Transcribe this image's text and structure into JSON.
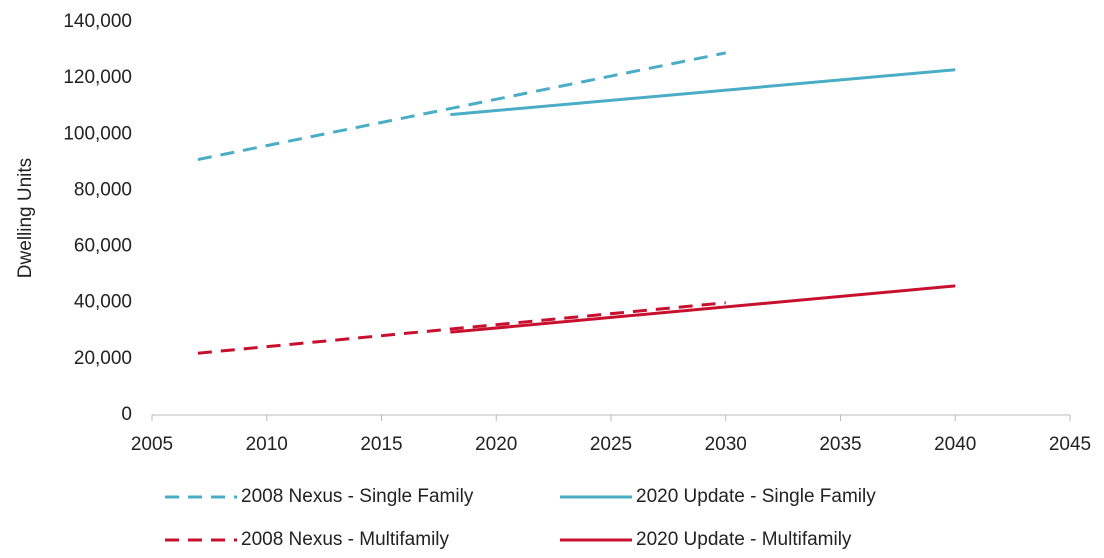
{
  "chart_data": {
    "type": "line",
    "y_label": "Dwelling Units",
    "xlim": [
      2005,
      2045
    ],
    "xticks": [
      2005,
      2010,
      2015,
      2020,
      2025,
      2030,
      2035,
      2040,
      2045
    ],
    "ylim": [
      0,
      140000
    ],
    "yticks": [
      0,
      {
        "value": 20000,
        "label": "20,000"
      },
      {
        "value": 40000,
        "label": "40,000"
      },
      {
        "value": 60000,
        "label": "60,000"
      },
      {
        "value": 80000,
        "label": "80,000"
      },
      {
        "value": 100000,
        "label": "100,000"
      },
      {
        "value": 120000,
        "label": "120,000"
      },
      {
        "value": 140000,
        "label": "140,000"
      }
    ],
    "legend": "bottom",
    "series": [
      {
        "name": "2008 Nexus - Single Family",
        "color": "#4bacc6",
        "style": "dashed",
        "x": [
          2007,
          2030
        ],
        "values": [
          91000,
          129000
        ]
      },
      {
        "name": "2020 Update - Single Family",
        "color": "#4bacc6",
        "style": "solid",
        "x": [
          2018,
          2040
        ],
        "values": [
          107000,
          123000
        ]
      },
      {
        "name": "2008 Nexus - Multifamily",
        "color": "#c8102e",
        "style": "dashed",
        "x": [
          2007,
          2030
        ],
        "values": [
          22000,
          40000
        ]
      },
      {
        "name": "2020 Update - Multifamily",
        "color": "#c8102e",
        "style": "solid",
        "x": [
          2018,
          2040
        ],
        "values": [
          29500,
          46000
        ]
      }
    ]
  }
}
